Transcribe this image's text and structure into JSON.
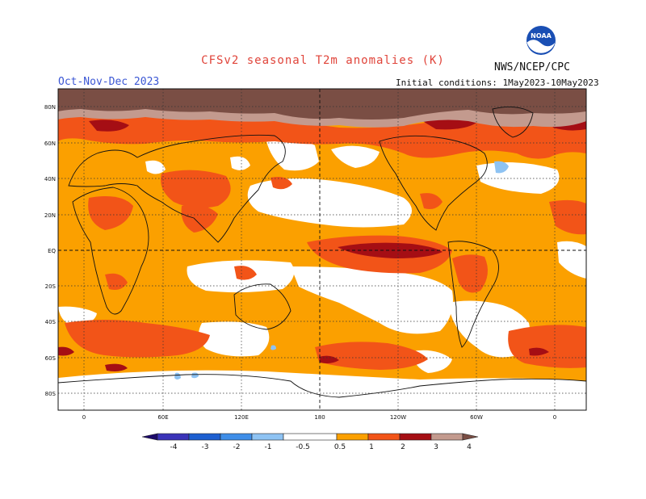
{
  "header": {
    "title": "CFSv2 seasonal T2m anomalies (K)",
    "agency": "NWS/NCEP/CPC",
    "season": "Oct-Nov-Dec 2023",
    "initial_conditions": "Initial conditions: 1May2023-10May2023",
    "logo_text": "NOAA"
  },
  "map": {
    "projection": "equirectangular",
    "lon_labels": [
      "0",
      "60E",
      "120E",
      "180",
      "120W",
      "60W",
      "0"
    ],
    "lat_labels": [
      "80N",
      "60N",
      "40N",
      "20N",
      "EQ",
      "20S",
      "40S",
      "60S",
      "80S"
    ],
    "grid_lines": "dotted every 30 degrees"
  },
  "colorbar": {
    "units": "K",
    "ticks": [
      "-4",
      "-3",
      "-2",
      "-1",
      "-0.5",
      "0.5",
      "1",
      "2",
      "3",
      "4"
    ],
    "colors": {
      "lt_-4": "#1c0a6a",
      "-4_-3": "#3a33b8",
      "-3_-2": "#1d5fd0",
      "-2_-1": "#3f8ee8",
      "-1_-0.5": "#8ec3f3",
      "-0.5_0.5": "#ffffff",
      "0.5_1": "#fba000",
      "1_2": "#f25418",
      "2_3": "#a50e14",
      "3_4": "#c39a8e",
      "gt_4": "#7a4e44"
    }
  }
}
